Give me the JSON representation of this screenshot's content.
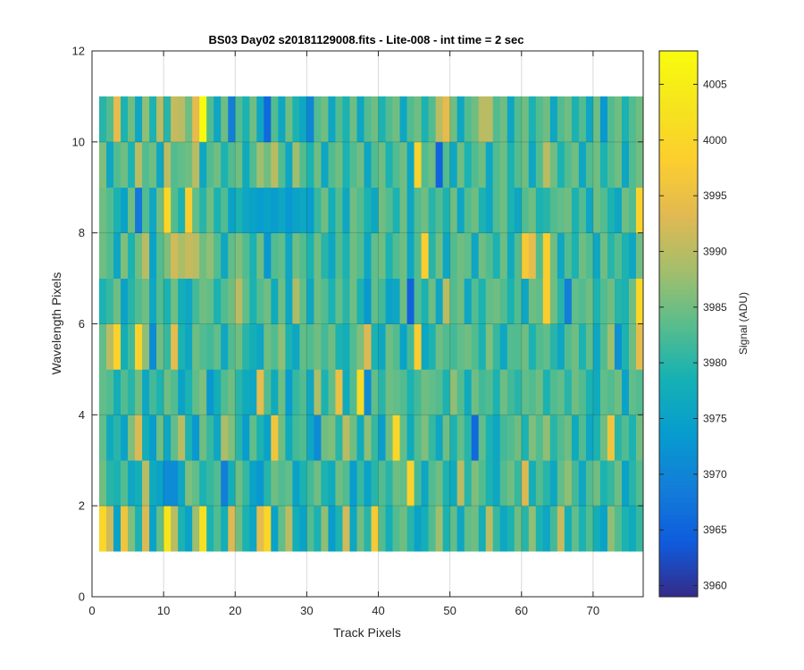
{
  "chart_data": {
    "type": "heatmap",
    "title": "BS03 Day02  s20181129008.fits - Lite-008 - int time = 2 sec",
    "xlabel": "Track Pixels",
    "ylabel": "Wavelength Pixels",
    "xlim": [
      0,
      77
    ],
    "ylim": [
      0,
      12
    ],
    "xticks": [
      0,
      10,
      20,
      30,
      40,
      50,
      60,
      70
    ],
    "yticks": [
      0,
      2,
      4,
      6,
      8,
      10,
      12
    ],
    "grid": true,
    "colormap": "parula",
    "colorbar": {
      "label": "Signal (ADU)",
      "clim": [
        3959,
        4008
      ],
      "ticks": [
        3960,
        3965,
        3970,
        3975,
        3980,
        3985,
        3990,
        3995,
        4000,
        4005
      ]
    },
    "cell_x_range": [
      1,
      77
    ],
    "cell_y_range": [
      1,
      11
    ],
    "rows_y": [
      1,
      2,
      3,
      4,
      5,
      6,
      7,
      8,
      9,
      10
    ],
    "columns_x_start": 1,
    "values": [
      [
        4000,
        3992,
        3975,
        3996,
        3986,
        3979,
        3993,
        3975,
        3984,
        4003,
        3990,
        3979,
        3975,
        3988,
        4002,
        3979,
        3983,
        3978,
        3993,
        3985,
        3979,
        3976,
        3994,
        4000,
        3975,
        3984,
        3990,
        3978,
        3975,
        3983,
        3979,
        3987,
        3974,
        3979,
        3992,
        3976,
        3985,
        3980,
        3997,
        3983,
        3978,
        3983,
        3985,
        3980,
        3975,
        3978,
        3983,
        3988,
        3979,
        3984,
        3976,
        3984,
        3985,
        3978,
        3990,
        3981,
        3976,
        3979,
        3985,
        3980,
        3987,
        3979,
        3976,
        3982,
        3991,
        3978,
        3984,
        3979,
        3983,
        3978,
        3975,
        3987,
        3983,
        3979,
        3977,
        3981
      ],
      [
        3985,
        3980,
        3979,
        3983,
        3976,
        3978,
        3990,
        3977,
        3975,
        3971,
        3971,
        3976,
        3986,
        3984,
        3979,
        3981,
        3983,
        3969,
        3978,
        3985,
        3981,
        3975,
        3973,
        3980,
        3985,
        3983,
        3984,
        3975,
        3979,
        3982,
        3985,
        3979,
        3977,
        3985,
        3983,
        3974,
        3981,
        3975,
        3980,
        3983,
        3980,
        3985,
        3984,
        3999,
        3982,
        3976,
        3983,
        3985,
        3979,
        3977,
        3990,
        3980,
        3986,
        3983,
        3979,
        3976,
        3983,
        3985,
        3981,
        3993,
        3978,
        3983,
        3980,
        3976,
        3984,
        3987,
        3982,
        3976,
        3983,
        3985,
        3979,
        3981,
        3985,
        3975,
        3980,
        3983
      ],
      [
        3984,
        3977,
        3980,
        3975,
        3986,
        3993,
        3978,
        3974,
        3985,
        3976,
        3984,
        3990,
        3979,
        3973,
        3985,
        3981,
        3976,
        3989,
        3986,
        3980,
        3974,
        3984,
        3979,
        3975,
        3996,
        3985,
        3977,
        3982,
        3983,
        3976,
        3971,
        3985,
        3986,
        3980,
        3990,
        3985,
        3977,
        3987,
        3981,
        3974,
        3985,
        4000,
        3984,
        3977,
        3983,
        3986,
        3981,
        3976,
        3985,
        3979,
        3984,
        3980,
        3966,
        3984,
        3979,
        3976,
        3982,
        3983,
        3985,
        3979,
        3986,
        3983,
        3987,
        3980,
        3983,
        3985,
        3977,
        3983,
        3976,
        3979,
        3985,
        3996,
        3980,
        3983,
        3979,
        3985
      ],
      [
        3984,
        3983,
        3978,
        3983,
        3980,
        3985,
        3976,
        3982,
        3979,
        3985,
        3983,
        3975,
        3979,
        3984,
        3986,
        3973,
        3978,
        3983,
        3985,
        3980,
        3977,
        3976,
        3994,
        3983,
        3977,
        3985,
        3974,
        3981,
        3983,
        3976,
        3989,
        3979,
        3984,
        3995,
        3977,
        3983,
        4001,
        3971,
        3984,
        3980,
        3985,
        3984,
        3983,
        3979,
        3982,
        3985,
        3984,
        3983,
        3979,
        3987,
        3983,
        3977,
        3985,
        3982,
        3983,
        3979,
        3985,
        3982,
        3980,
        3984,
        3983,
        3985,
        3979,
        3983,
        3984,
        3980,
        3985,
        3983,
        3979,
        3977,
        3984,
        3983,
        3985,
        3975,
        3984,
        3983
      ],
      [
        3984,
        3990,
        3999,
        3978,
        3982,
        3999,
        3987,
        3971,
        3985,
        3981,
        3994,
        3979,
        3976,
        3985,
        3983,
        3982,
        3984,
        3976,
        3983,
        3985,
        3980,
        3978,
        3976,
        3985,
        3983,
        3987,
        3979,
        3976,
        3984,
        3983,
        3985,
        3982,
        3985,
        3979,
        3978,
        3983,
        3986,
        3993,
        3979,
        3976,
        3985,
        3983,
        3975,
        3982,
        3998,
        3976,
        3979,
        3985,
        3983,
        3982,
        3984,
        3985,
        3983,
        3979,
        3986,
        3981,
        3976,
        3983,
        3983,
        3985,
        3979,
        3983,
        3984,
        3980,
        3976,
        3983,
        3985,
        3979,
        3984,
        3976,
        3983,
        3988,
        3972,
        3979,
        3985,
        3994
      ],
      [
        3979,
        3981,
        3985,
        3975,
        3980,
        3983,
        3985,
        3976,
        3983,
        3979,
        3985,
        3978,
        3976,
        3982,
        3985,
        3984,
        3979,
        3983,
        3985,
        3990,
        3984,
        3979,
        3983,
        3985,
        3977,
        3985,
        3976,
        3989,
        3984,
        3976,
        3985,
        3983,
        3979,
        3984,
        3980,
        3985,
        3979,
        3973,
        3984,
        3982,
        3975,
        3976,
        3985,
        3965,
        3983,
        3979,
        3985,
        3976,
        3990,
        3983,
        3985,
        3976,
        3983,
        3979,
        3984,
        3985,
        3983,
        3979,
        3983,
        3976,
        3985,
        3984,
        3998,
        3985,
        3980,
        3969,
        3984,
        3983,
        3985,
        3979,
        3983,
        3985,
        3980,
        3979,
        3985,
        4000
      ],
      [
        3985,
        3983,
        3976,
        3986,
        3979,
        3985,
        3990,
        3975,
        3983,
        3986,
        3992,
        3989,
        3991,
        3990,
        3985,
        3987,
        3983,
        3976,
        3984,
        3986,
        3983,
        3979,
        3985,
        3973,
        3983,
        3984,
        3976,
        3985,
        3983,
        3979,
        3985,
        3980,
        3976,
        3983,
        3979,
        3985,
        3983,
        3976,
        3984,
        3985,
        3979,
        3983,
        3985,
        3976,
        3983,
        3998,
        3980,
        3985,
        3976,
        3983,
        3985,
        3984,
        3976,
        3985,
        3983,
        3979,
        3985,
        3977,
        3983,
        3997,
        3994,
        3983,
        3998,
        3985,
        3976,
        3983,
        3979,
        3985,
        3983,
        3976,
        3985,
        3980,
        3983,
        3979,
        3976,
        3985
      ],
      [
        3985,
        3983,
        3979,
        3975,
        3985,
        3968,
        3983,
        3976,
        3985,
        4000,
        3983,
        3979,
        3998,
        3984,
        3980,
        3985,
        3979,
        3983,
        3975,
        3979,
        3976,
        3975,
        3974,
        3975,
        3974,
        3976,
        3973,
        3975,
        3976,
        3974,
        3981,
        3985,
        3978,
        3983,
        3976,
        3985,
        3983,
        3979,
        3976,
        3985,
        3983,
        3979,
        3985,
        3976,
        3983,
        3985,
        3980,
        3983,
        3979,
        3985,
        3976,
        3983,
        3985,
        3979,
        3976,
        3983,
        3985,
        3979,
        3976,
        3983,
        3985,
        3979,
        3980,
        3983,
        3984,
        3985,
        3979,
        3983,
        3976,
        3985,
        3983,
        3979,
        3976,
        3985,
        3983,
        3999
      ],
      [
        3986,
        3976,
        3983,
        3985,
        3979,
        3990,
        3983,
        3985,
        3976,
        3990,
        3983,
        3984,
        3985,
        3990,
        3976,
        3983,
        3985,
        3979,
        3983,
        3985,
        3977,
        3983,
        3988,
        3985,
        3990,
        3983,
        3976,
        3988,
        3983,
        3979,
        3985,
        3976,
        3983,
        3985,
        3979,
        3983,
        3985,
        3976,
        3983,
        3985,
        3979,
        3983,
        3985,
        3976,
        3999,
        3983,
        3985,
        3965,
        3983,
        3976,
        3985,
        3979,
        3983,
        3985,
        3976,
        3983,
        3985,
        3979,
        3983,
        3985,
        3976,
        3983,
        3990,
        3985,
        3979,
        3983,
        3985,
        3976,
        3983,
        3985,
        3979,
        3983,
        3985,
        3976,
        3983,
        3985
      ],
      [
        3980,
        3983,
        3994,
        3979,
        3985,
        3976,
        3987,
        3979,
        3990,
        3980,
        3991,
        3990,
        3985,
        3994,
        4008,
        3983,
        3976,
        3985,
        3969,
        3983,
        3979,
        3985,
        3976,
        3966,
        3983,
        3976,
        3985,
        3979,
        3976,
        3970,
        3983,
        3985,
        3976,
        3983,
        3979,
        3985,
        3976,
        3983,
        3985,
        3979,
        3983,
        3985,
        3976,
        3983,
        3985,
        3979,
        3983,
        3990,
        3994,
        3985,
        3976,
        3983,
        3985,
        3990,
        3990,
        3983,
        3985,
        3976,
        3983,
        3985,
        3979,
        3983,
        3985,
        3976,
        3983,
        3985,
        3979,
        3983,
        3976,
        3985,
        3973,
        3983,
        3985,
        3979,
        3983,
        3985
      ]
    ]
  }
}
